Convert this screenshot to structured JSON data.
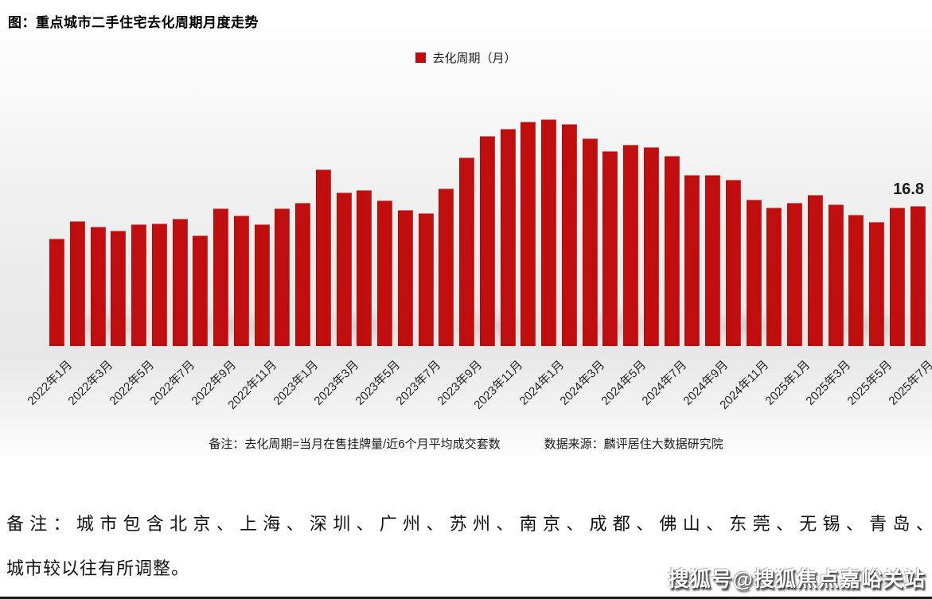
{
  "title": "图：重点城市二手住宅去化周期月度走势",
  "legend": {
    "label": "去化周期（月）",
    "color": "#c00d0d"
  },
  "chart_data": {
    "type": "bar",
    "series_name": "去化周期（月）",
    "bar_color": "#c00d0d",
    "grid": false,
    "legend_position": "top-center",
    "ylim": [
      0,
      28.8
    ],
    "x": [
      "2022年1月",
      "2022年2月",
      "2022年3月",
      "2022年4月",
      "2022年5月",
      "2022年6月",
      "2022年7月",
      "2022年8月",
      "2022年9月",
      "2022年10月",
      "2022年11月",
      "2022年12月",
      "2023年1月",
      "2023年2月",
      "2023年3月",
      "2023年4月",
      "2023年5月",
      "2023年6月",
      "2023年7月",
      "2023年8月",
      "2023年9月",
      "2023年10月",
      "2023年11月",
      "2023年12月",
      "2024年1月",
      "2024年2月",
      "2024年3月",
      "2024年4月",
      "2024年5月",
      "2024年6月",
      "2024年7月",
      "2024年8月",
      "2024年9月",
      "2024年10月",
      "2024年11月",
      "2024年12月",
      "2025年1月",
      "2025年2月",
      "2025年3月",
      "2025年4月",
      "2025年5月",
      "2025年6月",
      "2025年7月"
    ],
    "values": [
      12.9,
      15.0,
      14.3,
      13.8,
      14.6,
      14.7,
      15.3,
      13.2,
      16.5,
      15.6,
      14.6,
      16.5,
      17.2,
      21.2,
      18.4,
      18.7,
      17.5,
      16.3,
      15.9,
      18.9,
      22.7,
      25.2,
      26.1,
      27.0,
      27.3,
      26.7,
      25.0,
      23.4,
      24.2,
      23.9,
      22.8,
      20.5,
      20.5,
      20.0,
      17.6,
      16.6,
      17.2,
      18.1,
      17.0,
      15.7,
      14.9,
      16.6,
      16.8
    ],
    "tick_every": 2,
    "annotations": [
      {
        "x": "2025年7月",
        "text": "16.8"
      }
    ],
    "xlabel": "",
    "ylabel": ""
  },
  "annotation_label": "16.8",
  "footnote": {
    "note": "备注：去化周期=当月在售挂牌量/近6个月平均成交套数",
    "source": "数据来源：麟评居住大数据研究院"
  },
  "bottom_note": {
    "line1": "备注：城市包含北京、上海、深圳、广州、苏州、南京、成都、佛山、东莞、无锡、青岛、厦门、郑州，",
    "line2": "城市较以往有所调整。"
  },
  "watermark": "搜狐号@搜狐焦点嘉峪关站"
}
